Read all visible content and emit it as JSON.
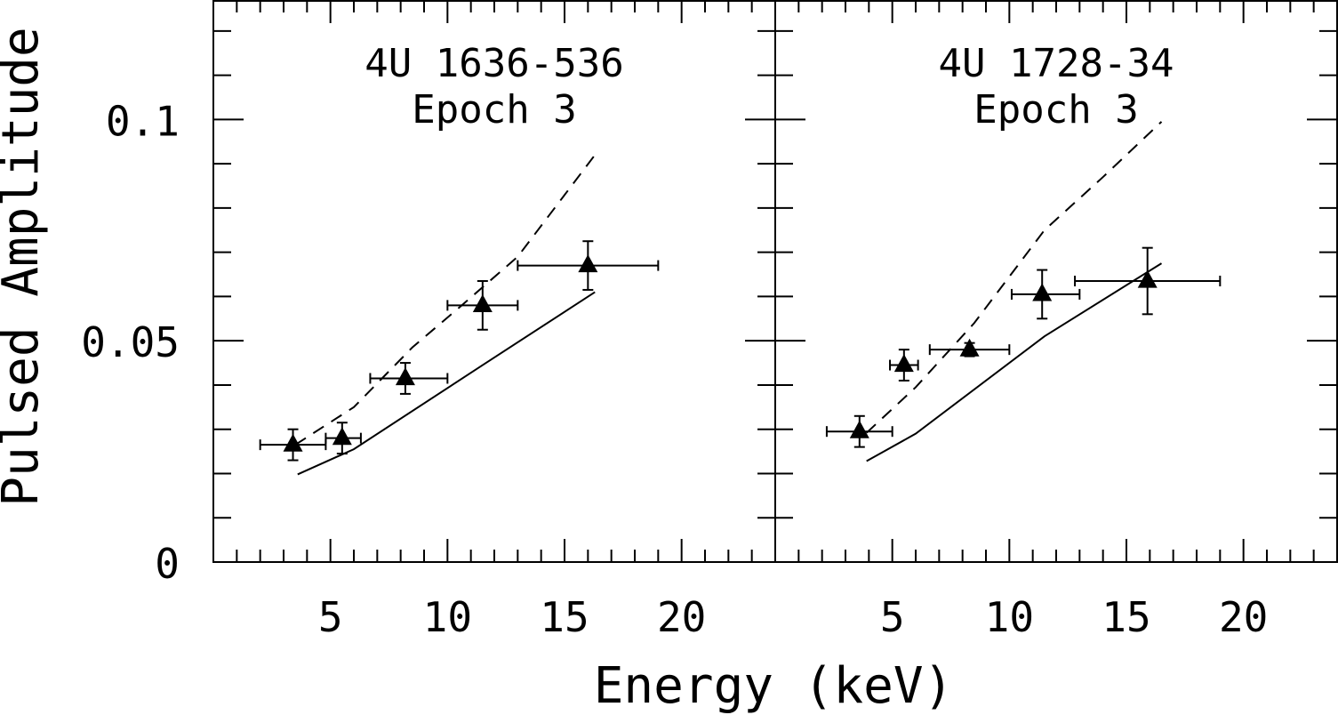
{
  "figure": {
    "xlabel": "Energy (keV)",
    "ylabel": "Pulsed Amplitude"
  },
  "chart_data": [
    {
      "type": "scatter",
      "title": "4U 1636-536",
      "subtitle": "Epoch 3",
      "xlabel": "Energy (keV)",
      "ylabel": "Pulsed Amplitude",
      "xlim": [
        0,
        24
      ],
      "ylim": [
        0,
        0.127
      ],
      "xticks": [
        5,
        10,
        15,
        20
      ],
      "xtick_labels": [
        "5",
        "10",
        "15",
        "20"
      ],
      "yticks": [
        0,
        0.05,
        0.1
      ],
      "ytick_labels": [
        "0",
        "0.05",
        "0.1"
      ],
      "series": [
        {
          "name": "data",
          "x": [
            3.4,
            5.5,
            8.2,
            11.5,
            16.0
          ],
          "y": [
            0.0265,
            0.028,
            0.0415,
            0.058,
            0.067
          ],
          "xerr_low": [
            1.4,
            0.7,
            1.5,
            1.5,
            3.0
          ],
          "xerr_high": [
            1.4,
            0.8,
            1.8,
            1.5,
            3.0
          ],
          "yerr": [
            0.0035,
            0.0035,
            0.0035,
            0.0055,
            0.0055
          ]
        },
        {
          "name": "solid model",
          "x": [
            3.6,
            6.0,
            11.5,
            16.3
          ],
          "y": [
            0.0198,
            0.0255,
            0.0445,
            0.061
          ]
        },
        {
          "name": "dashed model",
          "x": [
            3.5,
            6.0,
            8.5,
            10.5,
            13.0,
            16.3
          ],
          "y": [
            0.0265,
            0.035,
            0.0485,
            0.0575,
            0.069,
            0.092
          ]
        }
      ]
    },
    {
      "type": "scatter",
      "title": "4U 1728-34",
      "subtitle": "Epoch 3",
      "xlabel": "Energy (keV)",
      "ylabel": "Pulsed Amplitude",
      "xlim": [
        0,
        24
      ],
      "ylim": [
        0,
        0.127
      ],
      "xticks": [
        5,
        10,
        15,
        20
      ],
      "xtick_labels": [
        "5",
        "10",
        "15",
        "20"
      ],
      "yticks": [
        0,
        0.05,
        0.1
      ],
      "ytick_labels": [
        "",
        "",
        ""
      ],
      "series": [
        {
          "name": "data",
          "x": [
            3.6,
            5.5,
            8.3,
            11.4,
            15.9
          ],
          "y": [
            0.0295,
            0.0445,
            0.048,
            0.0605,
            0.0635
          ],
          "xerr_low": [
            1.4,
            0.6,
            1.7,
            1.3,
            3.1
          ],
          "xerr_high": [
            1.4,
            0.6,
            1.7,
            1.6,
            3.1
          ],
          "yerr": [
            0.0035,
            0.0035,
            0.0015,
            0.0055,
            0.0075
          ]
        },
        {
          "name": "solid model",
          "x": [
            3.9,
            6.0,
            11.5,
            16.5
          ],
          "y": [
            0.0228,
            0.029,
            0.051,
            0.0675
          ]
        },
        {
          "name": "dashed model",
          "x": [
            3.9,
            6.0,
            8.5,
            11.5,
            14.0,
            16.5
          ],
          "y": [
            0.0292,
            0.0395,
            0.054,
            0.075,
            0.087,
            0.0995
          ]
        }
      ]
    }
  ]
}
